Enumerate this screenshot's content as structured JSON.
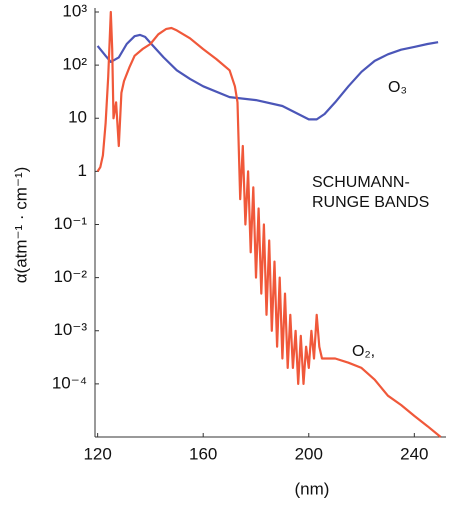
{
  "chart_data": {
    "type": "line",
    "yscale": "log",
    "xlabel": "(nm)",
    "ylabel": "α(atm⁻¹ · cm⁻¹)",
    "annotations": [
      "SCHUMANN-",
      "RUNGE BANDS",
      "O₃",
      "O₂,"
    ],
    "xlim": [
      119,
      252
    ],
    "xticks": [
      120,
      160,
      200,
      240
    ],
    "ylim": [
      1e-05,
      1000
    ],
    "yticks": [
      {
        "value": 1000,
        "label": "10³"
      },
      {
        "value": 100,
        "label": "10²"
      },
      10,
      1,
      {
        "value": 0.1,
        "label": "10⁻¹"
      },
      {
        "value": 0.01,
        "label": "10⁻²"
      },
      {
        "value": 0.001,
        "label": "10⁻³"
      },
      {
        "value": 0.0001,
        "label": "10⁻⁴"
      }
    ],
    "series": [
      {
        "name": "O₃",
        "color": "#4b56b8",
        "x": [
          120,
          123,
          125,
          128,
          131,
          134,
          136,
          138,
          141,
          145,
          150,
          155,
          160,
          170,
          180,
          190,
          196,
          200,
          203,
          206,
          210,
          215,
          220,
          225,
          230,
          235,
          240,
          245,
          249
        ],
        "values": [
          230,
          150,
          115,
          140,
          250,
          350,
          370,
          340,
          230,
          140,
          80,
          55,
          40,
          25,
          22,
          17,
          12,
          9.5,
          9.5,
          12,
          20,
          40,
          75,
          120,
          160,
          195,
          220,
          250,
          270
        ]
      },
      {
        "name": "O₂,",
        "color": "#f0583a",
        "x": [
          120,
          121,
          122,
          123,
          124,
          125,
          125.5,
          126,
          127,
          128,
          129,
          130,
          132,
          134,
          137,
          140,
          143,
          146,
          148,
          150,
          155,
          160,
          165,
          170,
          172,
          173,
          174,
          175,
          176,
          177,
          178,
          179,
          180,
          181,
          182,
          183,
          184,
          185,
          186,
          187,
          188,
          189,
          190,
          191,
          192,
          193,
          194,
          195,
          196,
          197,
          198,
          199,
          200,
          201,
          202,
          203,
          204,
          205,
          210,
          215,
          220,
          225,
          230,
          235,
          240,
          245,
          250
        ],
        "values": [
          1,
          1.2,
          2,
          8,
          60,
          1000,
          200,
          10,
          20,
          3,
          30,
          50,
          90,
          150,
          200,
          250,
          380,
          480,
          500,
          450,
          320,
          200,
          130,
          80,
          40,
          20,
          0.3,
          3,
          0.1,
          1,
          0.03,
          0.5,
          0.01,
          0.2,
          0.005,
          0.1,
          0.002,
          0.05,
          0.001,
          0.02,
          0.0005,
          0.01,
          0.0003,
          0.005,
          0.0002,
          0.002,
          0.0002,
          0.001,
          0.0001,
          0.0008,
          0.0001,
          0.0005,
          0.0002,
          0.001,
          0.0003,
          0.002,
          0.0005,
          0.0003,
          0.0003,
          0.00025,
          0.0002,
          0.00012,
          6e-05,
          4e-05,
          2.5e-05,
          1.6e-05,
          1e-05
        ]
      }
    ]
  }
}
